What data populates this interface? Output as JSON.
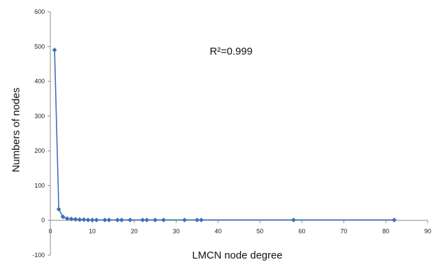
{
  "chart_data": {
    "type": "scatter",
    "title": "",
    "xlabel": "LMCN node degree",
    "ylabel": "Numbers of nodes",
    "annotation": "R²=0.999",
    "xlim": [
      0,
      90
    ],
    "ylim": [
      -100,
      600
    ],
    "xticks": [
      "0",
      "10",
      "20",
      "30",
      "40",
      "50",
      "60",
      "70",
      "80",
      "90"
    ],
    "yticks": [
      "-100",
      "0",
      "100",
      "200",
      "300",
      "400",
      "500",
      "600"
    ],
    "grid": false,
    "legend": "none",
    "colors": {
      "series": "#3d6fb6",
      "axis": "#8c8c8c"
    },
    "series": [
      {
        "x": [
          1,
          2,
          3,
          4,
          5,
          6,
          7,
          8,
          9,
          10,
          11,
          13,
          14,
          16,
          17,
          19,
          22,
          23,
          25,
          27,
          32,
          35,
          36,
          58,
          82
        ],
        "y": [
          490,
          32,
          10,
          5,
          4,
          3,
          2,
          2,
          1,
          1,
          1,
          1,
          1,
          1,
          1,
          1,
          1,
          1,
          1,
          1,
          1,
          1,
          1,
          1,
          1
        ]
      }
    ]
  }
}
